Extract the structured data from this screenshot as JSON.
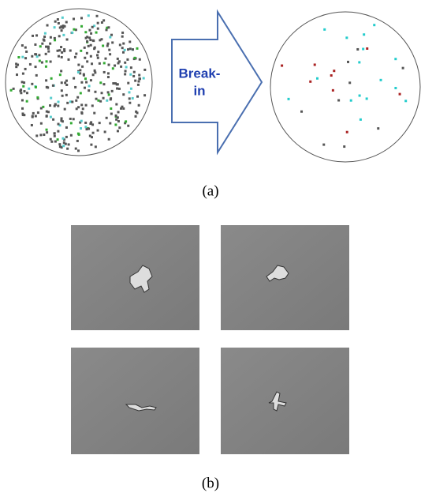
{
  "figure": {
    "arrow_label_lines": [
      "Break-",
      "in"
    ],
    "panels": [
      {
        "label": "(a)"
      },
      {
        "label": "(b)"
      }
    ]
  }
}
